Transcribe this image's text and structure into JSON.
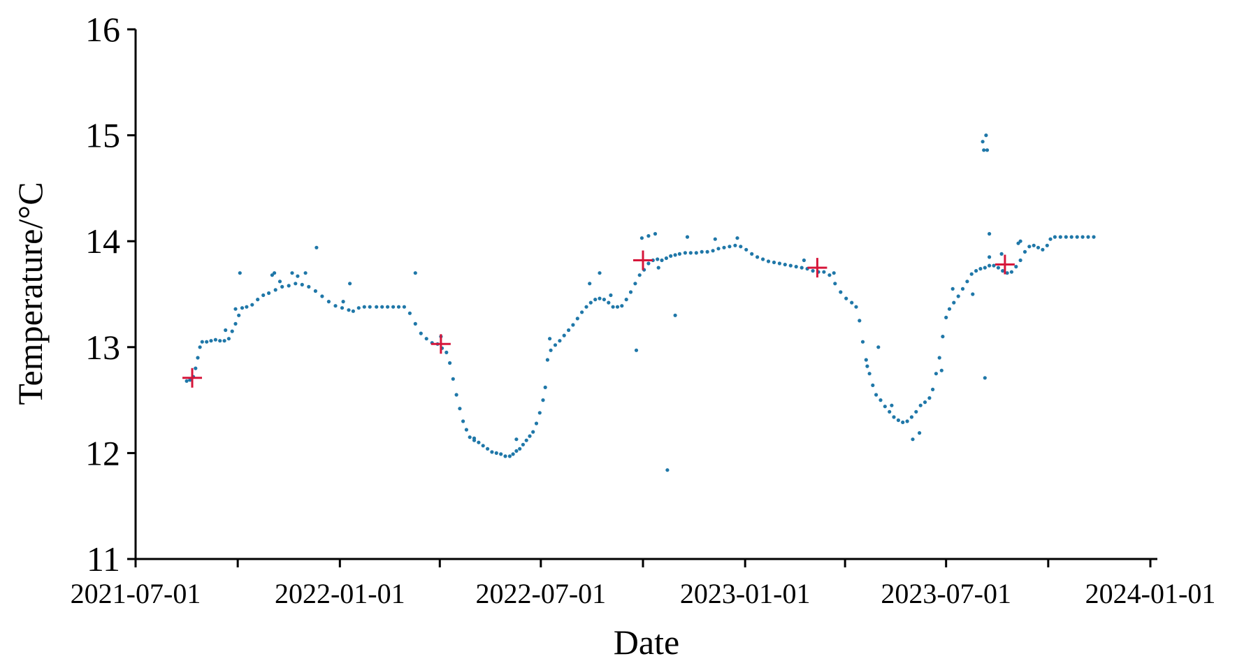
{
  "chart_data": {
    "type": "scatter",
    "xlabel": "Date",
    "ylabel": "Temperature/°C",
    "x_axis_kind": "date",
    "xlim": [
      "2021-07-01",
      "2024-01-01"
    ],
    "ylim": [
      11,
      16
    ],
    "y_ticks": [
      11,
      12,
      13,
      14,
      15,
      16
    ],
    "x_ticks_labeled": [
      "2021-07-01",
      "2022-01-01",
      "2022-07-01",
      "2023-01-01",
      "2023-07-01",
      "2024-01-01"
    ],
    "x_ticks_minor": [
      "2021-10-01",
      "2022-04-01",
      "2022-10-01",
      "2023-04-01",
      "2023-10-01"
    ],
    "grid": false,
    "legend": "none",
    "series": [
      {
        "marker": "dot",
        "color": "#1f77a8",
        "points": [
          [
            "2021-08-16",
            12.68
          ],
          [
            "2021-08-19",
            12.69
          ],
          [
            "2021-08-22",
            12.72
          ],
          [
            "2021-08-24",
            12.8
          ],
          [
            "2021-08-26",
            12.9
          ],
          [
            "2021-08-28",
            13.0
          ],
          [
            "2021-08-30",
            13.05
          ],
          [
            "2021-09-03",
            13.05
          ],
          [
            "2021-09-07",
            13.06
          ],
          [
            "2021-09-11",
            13.07
          ],
          [
            "2021-09-15",
            13.06
          ],
          [
            "2021-09-19",
            13.06
          ],
          [
            "2021-09-23",
            13.08
          ],
          [
            "2021-09-26",
            13.15
          ],
          [
            "2021-09-29",
            13.22
          ],
          [
            "2021-10-02",
            13.3
          ],
          [
            "2021-10-05",
            13.37
          ],
          [
            "2021-10-09",
            13.38
          ],
          [
            "2021-10-14",
            13.4
          ],
          [
            "2021-10-19",
            13.45
          ],
          [
            "2021-10-24",
            13.49
          ],
          [
            "2021-10-29",
            13.51
          ],
          [
            "2021-11-04",
            13.54
          ],
          [
            "2021-11-10",
            13.57
          ],
          [
            "2021-11-16",
            13.58
          ],
          [
            "2021-11-22",
            13.6
          ],
          [
            "2021-11-28",
            13.59
          ],
          [
            "2021-12-04",
            13.57
          ],
          [
            "2021-12-10",
            13.53
          ],
          [
            "2021-12-16",
            13.48
          ],
          [
            "2021-12-22",
            13.43
          ],
          [
            "2021-12-28",
            13.39
          ],
          [
            "2022-01-03",
            13.37
          ],
          [
            "2022-01-09",
            13.35
          ],
          [
            "2022-01-13",
            13.34
          ],
          [
            "2022-01-18",
            13.37
          ],
          [
            "2022-01-23",
            13.38
          ],
          [
            "2022-01-28",
            13.38
          ],
          [
            "2022-02-03",
            13.38
          ],
          [
            "2022-02-08",
            13.38
          ],
          [
            "2022-02-13",
            13.38
          ],
          [
            "2022-02-18",
            13.38
          ],
          [
            "2022-02-23",
            13.38
          ],
          [
            "2022-02-28",
            13.38
          ],
          [
            "2022-03-05",
            13.32
          ],
          [
            "2022-03-10",
            13.22
          ],
          [
            "2022-03-15",
            13.13
          ],
          [
            "2022-03-20",
            13.08
          ],
          [
            "2022-03-25",
            13.04
          ],
          [
            "2022-03-30",
            13.03
          ],
          [
            "2022-04-03",
            12.99
          ],
          [
            "2022-04-07",
            12.95
          ],
          [
            "2022-04-10",
            12.85
          ],
          [
            "2022-04-13",
            12.7
          ],
          [
            "2022-04-16",
            12.55
          ],
          [
            "2022-04-19",
            12.42
          ],
          [
            "2022-04-22",
            12.3
          ],
          [
            "2022-04-25",
            12.22
          ],
          [
            "2022-04-28",
            12.15
          ],
          [
            "2022-05-02",
            12.12
          ],
          [
            "2022-05-06",
            12.1
          ],
          [
            "2022-05-10",
            12.07
          ],
          [
            "2022-05-14",
            12.04
          ],
          [
            "2022-05-18",
            12.01
          ],
          [
            "2022-05-22",
            12.0
          ],
          [
            "2022-05-26",
            11.99
          ],
          [
            "2022-05-30",
            11.97
          ],
          [
            "2022-06-03",
            11.97
          ],
          [
            "2022-06-06",
            11.99
          ],
          [
            "2022-06-09",
            12.02
          ],
          [
            "2022-06-12",
            12.04
          ],
          [
            "2022-06-15",
            12.08
          ],
          [
            "2022-06-18",
            12.12
          ],
          [
            "2022-06-21",
            12.16
          ],
          [
            "2022-06-24",
            12.2
          ],
          [
            "2022-06-27",
            12.28
          ],
          [
            "2022-06-30",
            12.38
          ],
          [
            "2022-07-03",
            12.5
          ],
          [
            "2022-07-05",
            12.62
          ],
          [
            "2022-07-07",
            12.88
          ],
          [
            "2022-07-10",
            12.97
          ],
          [
            "2022-07-14",
            13.02
          ],
          [
            "2022-07-18",
            13.06
          ],
          [
            "2022-07-22",
            13.11
          ],
          [
            "2022-07-26",
            13.16
          ],
          [
            "2022-07-30",
            13.21
          ],
          [
            "2022-08-03",
            13.27
          ],
          [
            "2022-08-07",
            13.33
          ],
          [
            "2022-08-11",
            13.38
          ],
          [
            "2022-08-15",
            13.42
          ],
          [
            "2022-08-19",
            13.45
          ],
          [
            "2022-08-23",
            13.46
          ],
          [
            "2022-08-27",
            13.45
          ],
          [
            "2022-08-31",
            13.42
          ],
          [
            "2022-09-04",
            13.38
          ],
          [
            "2022-09-08",
            13.38
          ],
          [
            "2022-09-12",
            13.39
          ],
          [
            "2022-09-16",
            13.45
          ],
          [
            "2022-09-20",
            13.52
          ],
          [
            "2022-09-24",
            13.6
          ],
          [
            "2022-09-28",
            13.68
          ],
          [
            "2022-10-02",
            13.73
          ],
          [
            "2022-10-06",
            13.79
          ],
          [
            "2022-10-10",
            13.82
          ],
          [
            "2022-10-14",
            13.83
          ],
          [
            "2022-10-18",
            13.82
          ],
          [
            "2022-10-22",
            13.84
          ],
          [
            "2022-10-26",
            13.86
          ],
          [
            "2022-10-30",
            13.87
          ],
          [
            "2022-11-03",
            13.88
          ],
          [
            "2022-11-08",
            13.89
          ],
          [
            "2022-11-13",
            13.89
          ],
          [
            "2022-11-18",
            13.89
          ],
          [
            "2022-11-23",
            13.9
          ],
          [
            "2022-11-28",
            13.9
          ],
          [
            "2022-12-03",
            13.91
          ],
          [
            "2022-12-08",
            13.93
          ],
          [
            "2022-12-13",
            13.94
          ],
          [
            "2022-12-18",
            13.95
          ],
          [
            "2022-12-23",
            13.96
          ],
          [
            "2022-12-28",
            13.95
          ],
          [
            "2023-01-02",
            13.92
          ],
          [
            "2023-01-07",
            13.88
          ],
          [
            "2023-01-12",
            13.85
          ],
          [
            "2023-01-17",
            13.83
          ],
          [
            "2023-01-22",
            13.81
          ],
          [
            "2023-01-27",
            13.8
          ],
          [
            "2023-02-01",
            13.79
          ],
          [
            "2023-02-06",
            13.78
          ],
          [
            "2023-02-11",
            13.77
          ],
          [
            "2023-02-16",
            13.76
          ],
          [
            "2023-02-21",
            13.75
          ],
          [
            "2023-02-26",
            13.74
          ],
          [
            "2023-03-03",
            13.72
          ],
          [
            "2023-03-08",
            13.71
          ],
          [
            "2023-03-13",
            13.71
          ],
          [
            "2023-03-18",
            13.68
          ],
          [
            "2023-03-23",
            13.6
          ],
          [
            "2023-03-28",
            13.52
          ],
          [
            "2023-04-02",
            13.46
          ],
          [
            "2023-04-07",
            13.42
          ],
          [
            "2023-04-11",
            13.38
          ],
          [
            "2023-04-14",
            13.25
          ],
          [
            "2023-04-17",
            13.05
          ],
          [
            "2023-04-20",
            12.88
          ],
          [
            "2023-04-23",
            12.75
          ],
          [
            "2023-04-26",
            12.64
          ],
          [
            "2023-04-29",
            12.55
          ],
          [
            "2023-05-03",
            12.5
          ],
          [
            "2023-05-07",
            12.44
          ],
          [
            "2023-05-11",
            12.39
          ],
          [
            "2023-05-15",
            12.34
          ],
          [
            "2023-05-19",
            12.31
          ],
          [
            "2023-05-23",
            12.29
          ],
          [
            "2023-05-27",
            12.3
          ],
          [
            "2023-05-31",
            12.34
          ],
          [
            "2023-06-04",
            12.39
          ],
          [
            "2023-06-08",
            12.45
          ],
          [
            "2023-06-12",
            12.48
          ],
          [
            "2023-06-16",
            12.52
          ],
          [
            "2023-06-19",
            12.6
          ],
          [
            "2023-06-22",
            12.75
          ],
          [
            "2023-06-25",
            12.9
          ],
          [
            "2023-06-28",
            13.1
          ],
          [
            "2023-07-01",
            13.28
          ],
          [
            "2023-07-04",
            13.36
          ],
          [
            "2023-07-08",
            13.42
          ],
          [
            "2023-07-12",
            13.48
          ],
          [
            "2023-07-16",
            13.55
          ],
          [
            "2023-07-20",
            13.62
          ],
          [
            "2023-07-24",
            13.69
          ],
          [
            "2023-07-28",
            13.72
          ],
          [
            "2023-08-01",
            13.74
          ],
          [
            "2023-08-05",
            13.75
          ],
          [
            "2023-08-09",
            13.77
          ],
          [
            "2023-08-13",
            13.77
          ],
          [
            "2023-08-17",
            13.75
          ],
          [
            "2023-08-21",
            13.72
          ],
          [
            "2023-08-25",
            13.7
          ],
          [
            "2023-08-29",
            13.71
          ],
          [
            "2023-09-02",
            13.76
          ],
          [
            "2023-09-06",
            13.82
          ],
          [
            "2023-09-10",
            13.9
          ],
          [
            "2023-09-14",
            13.95
          ],
          [
            "2023-09-18",
            13.96
          ],
          [
            "2023-09-22",
            13.94
          ],
          [
            "2023-09-26",
            13.92
          ],
          [
            "2023-09-30",
            13.96
          ],
          [
            "2023-10-03",
            14.02
          ],
          [
            "2023-10-07",
            14.04
          ],
          [
            "2023-10-12",
            14.04
          ],
          [
            "2023-10-17",
            14.04
          ],
          [
            "2023-10-22",
            14.04
          ],
          [
            "2023-10-27",
            14.04
          ],
          [
            "2023-11-01",
            14.04
          ],
          [
            "2023-11-06",
            14.04
          ],
          [
            "2023-11-11",
            14.04
          ],
          [
            "2021-09-20",
            13.16
          ],
          [
            "2021-09-29",
            13.36
          ],
          [
            "2021-10-03",
            13.7
          ],
          [
            "2021-11-01",
            13.68
          ],
          [
            "2021-11-03",
            13.7
          ],
          [
            "2021-11-08",
            13.62
          ],
          [
            "2021-11-19",
            13.7
          ],
          [
            "2021-11-24",
            13.67
          ],
          [
            "2021-12-01",
            13.7
          ],
          [
            "2021-12-11",
            13.94
          ],
          [
            "2022-01-04",
            13.43
          ],
          [
            "2022-01-10",
            13.6
          ],
          [
            "2022-03-10",
            13.7
          ],
          [
            "2022-04-02",
            13.1
          ],
          [
            "2022-05-02",
            12.14
          ],
          [
            "2022-06-09",
            12.13
          ],
          [
            "2022-07-09",
            13.08
          ],
          [
            "2022-08-14",
            13.6
          ],
          [
            "2022-08-23",
            13.7
          ],
          [
            "2022-09-02",
            13.49
          ],
          [
            "2022-09-25",
            12.97
          ],
          [
            "2022-09-30",
            14.03
          ],
          [
            "2022-10-06",
            14.05
          ],
          [
            "2022-10-12",
            14.07
          ],
          [
            "2022-10-15",
            13.75
          ],
          [
            "2022-10-23",
            11.84
          ],
          [
            "2022-10-30",
            13.3
          ],
          [
            "2022-11-10",
            14.04
          ],
          [
            "2022-12-05",
            14.02
          ],
          [
            "2022-12-25",
            14.03
          ],
          [
            "2023-02-23",
            13.82
          ],
          [
            "2023-03-22",
            13.7
          ],
          [
            "2023-04-21",
            12.82
          ],
          [
            "2023-05-01",
            13.0
          ],
          [
            "2023-05-13",
            12.45
          ],
          [
            "2023-06-01",
            12.13
          ],
          [
            "2023-06-07",
            12.19
          ],
          [
            "2023-06-27",
            12.78
          ],
          [
            "2023-07-07",
            13.55
          ],
          [
            "2023-07-25",
            13.5
          ],
          [
            "2023-08-03",
            14.94
          ],
          [
            "2023-08-04",
            14.86
          ],
          [
            "2023-08-06",
            15.0
          ],
          [
            "2023-08-07",
            14.86
          ],
          [
            "2023-08-05",
            12.71
          ],
          [
            "2023-08-09",
            14.07
          ],
          [
            "2023-08-09",
            13.85
          ],
          [
            "2023-08-20",
            13.88
          ],
          [
            "2023-09-04",
            13.98
          ],
          [
            "2023-09-06",
            14.0
          ]
        ]
      },
      {
        "marker": "plus",
        "color": "#d6163a",
        "points": [
          [
            "2021-08-21",
            12.71
          ],
          [
            "2022-04-02",
            13.03
          ],
          [
            "2022-10-01",
            13.82
          ],
          [
            "2023-03-07",
            13.75
          ],
          [
            "2023-08-23",
            13.78
          ]
        ]
      }
    ]
  }
}
